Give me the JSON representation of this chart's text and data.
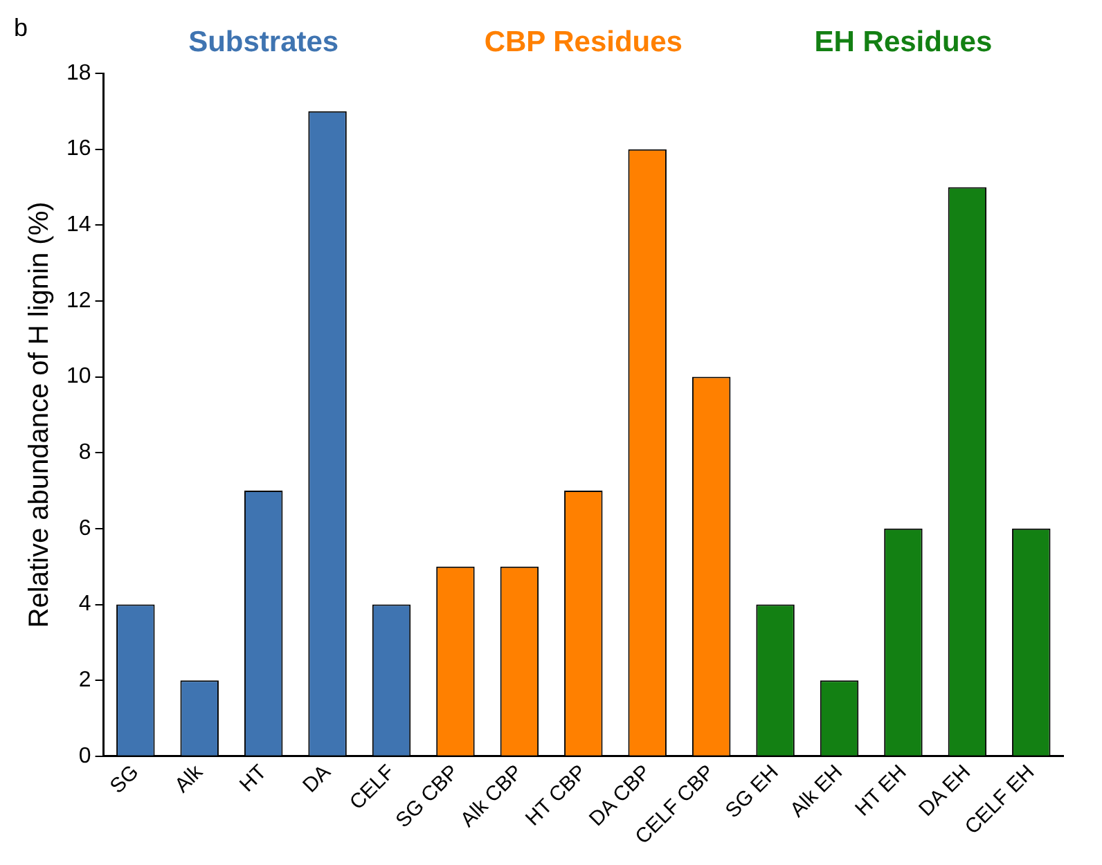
{
  "chart_data": {
    "type": "bar",
    "ylabel": "Relative abundance of H lignin (%)",
    "annotations": [
      "b"
    ],
    "categories": [
      "SG",
      "Alk",
      "HT",
      "DA",
      "CELF",
      "SG CBP",
      "Alk CBP",
      "HT CBP",
      "DA CBP",
      "CELF CBP",
      "SG EH",
      "Alk EH",
      "HT EH",
      "DA EH",
      "CELF EH"
    ],
    "series": [
      {
        "name": "Substrates",
        "color": "#3f74b1",
        "values": [
          4,
          2,
          7,
          17,
          4,
          null,
          null,
          null,
          null,
          null,
          null,
          null,
          null,
          null,
          null
        ]
      },
      {
        "name": "CBP Residues",
        "color": "#ff8000",
        "values": [
          null,
          null,
          null,
          null,
          null,
          5,
          5,
          7,
          16,
          10,
          null,
          null,
          null,
          null,
          null
        ]
      },
      {
        "name": "EH Residues",
        "color": "#138013",
        "values": [
          null,
          null,
          null,
          null,
          null,
          null,
          null,
          null,
          null,
          null,
          4,
          2,
          6,
          15,
          6
        ]
      }
    ],
    "ylim": [
      0,
      18
    ],
    "yticks": [
      0,
      2,
      4,
      6,
      8,
      10,
      12,
      14,
      16,
      18
    ],
    "grid": false,
    "legend": "top"
  }
}
